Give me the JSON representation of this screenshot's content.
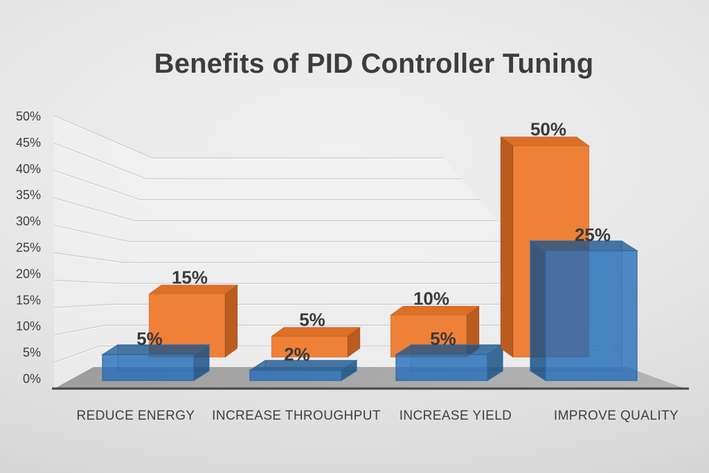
{
  "title": "Benefits of PID Controller Tuning",
  "chart_data": {
    "type": "bar",
    "projection": "3d-perspective",
    "title": "Benefits of PID Controller Tuning",
    "categories": [
      "REDUCE ENERGY",
      "INCREASE THROUGHPUT",
      "INCREASE YIELD",
      "IMPROVE QUALITY"
    ],
    "series": [
      {
        "name": "orange-back-series",
        "color": "#EE8038",
        "values": [
          15,
          5,
          10,
          50
        ],
        "labels": [
          "15%",
          "5%",
          "10%",
          "50%"
        ]
      },
      {
        "name": "blue-front-series",
        "color": "#3C78BE",
        "values": [
          5,
          2,
          5,
          25
        ],
        "labels": [
          "5%",
          "2%",
          "5%",
          "25%"
        ]
      }
    ],
    "y_axis": {
      "min": 0,
      "max": 50,
      "step": 5,
      "ticks": [
        "0%",
        "5%",
        "10%",
        "15%",
        "20%",
        "25%",
        "30%",
        "35%",
        "40%",
        "45%",
        "50%"
      ]
    },
    "xlabel": "",
    "ylabel": "",
    "grid": true,
    "legend": "none",
    "data_labels": true
  },
  "colors": {
    "title_text": "#3d3d3d",
    "axis_text": "#3c3c3c",
    "category_text": "#3f3f3f",
    "data_label_text": "#3a3a3a",
    "background_center": "#f0f0f0",
    "background_edge": "#c9c9c9",
    "floor_left": "#9d9d9d",
    "floor_right": "#b5b5b5",
    "baseline": "#4a4a4a",
    "orange_front": "#EE8038",
    "orange_top": "#DD6F27",
    "orange_side": "#B95C1E",
    "blue_front": "rgba(34,108,185,0.78)",
    "blue_top": "rgba(19,79,136,0.72)",
    "blue_side": "rgba(21,77,130,0.8)",
    "blue_back": "rgba(34,108,185,0.15)",
    "blue_edge": "#2A6AA5",
    "gridline_dark": "rgba(175,175,175,0.55)",
    "gridline_light": "rgba(255,255,255,0.8)",
    "wall_fill": "rgba(246,246,246,0.45)"
  }
}
